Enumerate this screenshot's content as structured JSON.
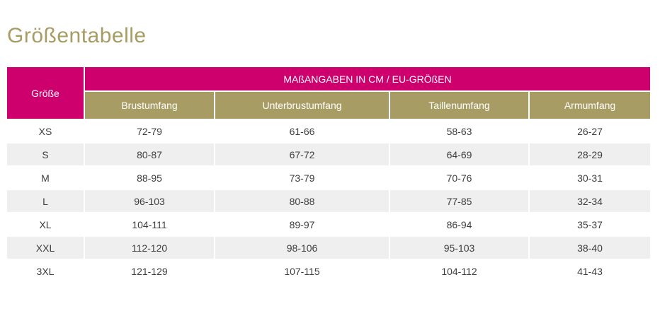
{
  "page": {
    "title": "Größentabelle"
  },
  "table": {
    "corner_header": "Größe",
    "group_header": "MAßANGABEN IN CM / EU-GRÖßEN",
    "column_headers": [
      "Brustumfang",
      "Unterbrustumfang",
      "Taillenumfang",
      "Armumfang"
    ],
    "rows": [
      {
        "size": "XS",
        "values": [
          "72-79",
          "61-66",
          "58-63",
          "26-27"
        ]
      },
      {
        "size": "S",
        "values": [
          "80-87",
          "67-72",
          "64-69",
          "28-29"
        ]
      },
      {
        "size": "M",
        "values": [
          "88-95",
          "73-79",
          "70-76",
          "30-31"
        ]
      },
      {
        "size": "L",
        "values": [
          "96-103",
          "80-88",
          "77-85",
          "32-34"
        ]
      },
      {
        "size": "XL",
        "values": [
          "104-111",
          "89-97",
          "86-94",
          "35-37"
        ]
      },
      {
        "size": "XXL",
        "values": [
          "112-120",
          "98-106",
          "95-103",
          "38-40"
        ]
      },
      {
        "size": "3XL",
        "values": [
          "121-129",
          "107-115",
          "104-112",
          "41-43"
        ]
      }
    ]
  },
  "colors": {
    "accent_pink": "#ce006e",
    "accent_gold": "#a79d64",
    "title_gold": "#a79d64",
    "row_alt_gray": "#efefef",
    "cell_text": "#3e3e3e"
  }
}
